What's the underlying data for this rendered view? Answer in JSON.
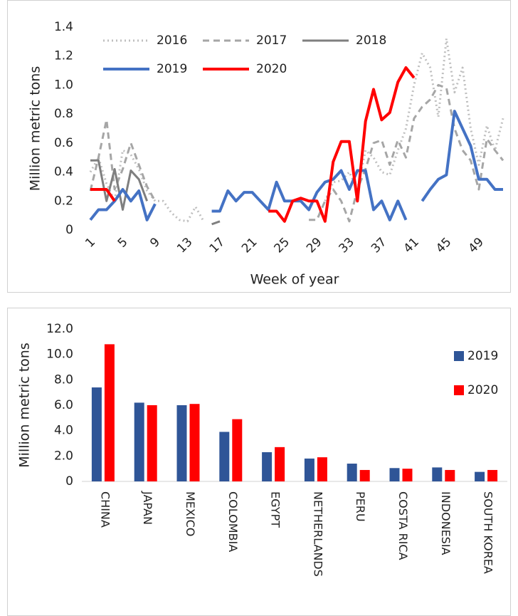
{
  "chart_data": [
    {
      "type": "line",
      "y_label": "Million metric tons",
      "x_label": "Week of year",
      "x": [
        1,
        2,
        3,
        4,
        5,
        6,
        7,
        8,
        9,
        10,
        11,
        12,
        13,
        14,
        15,
        16,
        17,
        18,
        19,
        20,
        21,
        22,
        23,
        24,
        25,
        26,
        27,
        28,
        29,
        30,
        31,
        32,
        33,
        34,
        35,
        36,
        37,
        38,
        39,
        40,
        41,
        42,
        43,
        44,
        45,
        46,
        47,
        48,
        49,
        50,
        51,
        52
      ],
      "xlim": [
        1,
        52
      ],
      "xticks": [
        1,
        5,
        9,
        13,
        17,
        21,
        25,
        29,
        33,
        37,
        41,
        45,
        49
      ],
      "ylim": [
        0,
        1.4
      ],
      "yticks": [
        0,
        0.2,
        0.4,
        0.6,
        0.8,
        {
          "value": 1,
          "label": "1.0"
        },
        1.2,
        1.4
      ],
      "series": [
        {
          "name": "2016",
          "color": "#bfbfbf",
          "style": "dotted",
          "values": [
            0.4,
            0.5,
            0.32,
            0.2,
            0.55,
            0.52,
            0.42,
            0.27,
            0.2,
            0.2,
            0.12,
            0.07,
            0.06,
            0.16,
            0.06,
            null,
            null,
            null,
            null,
            null,
            null,
            null,
            null,
            null,
            null,
            null,
            null,
            null,
            null,
            0.2,
            0.33,
            0.34,
            0.4,
            0.28,
            0.55,
            0.5,
            0.4,
            0.38,
            0.55,
            0.7,
            1.0,
            1.22,
            1.12,
            0.78,
            1.32,
            0.95,
            1.12,
            0.7,
            0.45,
            0.72,
            0.55,
            0.77
          ]
        },
        {
          "name": "2017",
          "color": "#a6a6a6",
          "style": "dashed",
          "values": [
            0.27,
            0.5,
            0.76,
            0.28,
            0.42,
            0.6,
            0.45,
            0.3,
            0.2,
            null,
            null,
            null,
            null,
            null,
            null,
            null,
            null,
            null,
            null,
            null,
            null,
            null,
            null,
            null,
            null,
            null,
            null,
            0.07,
            0.07,
            0.2,
            0.28,
            0.2,
            0.06,
            0.28,
            0.42,
            0.6,
            0.62,
            0.45,
            0.62,
            0.5,
            0.77,
            0.85,
            0.9,
            1.0,
            0.98,
            0.7,
            0.55,
            0.48,
            0.28,
            0.63,
            0.55,
            0.48
          ]
        },
        {
          "name": "2018",
          "color": "#7f7f7f",
          "style": "solid",
          "values": [
            0.48,
            0.48,
            0.2,
            0.42,
            0.14,
            0.41,
            0.35,
            0.2,
            null,
            null,
            null,
            null,
            null,
            null,
            null,
            0.04,
            0.06,
            null,
            null,
            null,
            null,
            null,
            null,
            null,
            null,
            null,
            null,
            null,
            null,
            null,
            null,
            null,
            null,
            null,
            null,
            null,
            null,
            null,
            null,
            null,
            null,
            null,
            null,
            null,
            null,
            null,
            null,
            null,
            null,
            null,
            null,
            null
          ]
        },
        {
          "name": "2019",
          "color": "#4472c4",
          "style": "solid",
          "values": [
            0.07,
            0.14,
            0.14,
            0.2,
            0.28,
            0.2,
            0.27,
            0.07,
            0.18,
            null,
            null,
            null,
            null,
            null,
            null,
            0.13,
            0.13,
            0.27,
            0.2,
            0.26,
            0.26,
            0.2,
            0.14,
            0.33,
            0.2,
            0.2,
            0.2,
            0.14,
            0.26,
            0.33,
            0.35,
            0.41,
            0.28,
            0.41,
            0.41,
            0.14,
            0.2,
            0.07,
            0.2,
            0.07,
            null,
            0.2,
            0.28,
            0.35,
            0.38,
            0.82,
            0.7,
            0.58,
            0.35,
            0.35,
            0.28,
            0.28
          ]
        },
        {
          "name": "2020",
          "color": "#ff0000",
          "style": "solid",
          "values": [
            0.28,
            0.28,
            0.28,
            0.2,
            null,
            null,
            null,
            null,
            null,
            null,
            null,
            null,
            null,
            null,
            null,
            null,
            null,
            null,
            null,
            null,
            null,
            null,
            0.13,
            0.13,
            0.06,
            0.2,
            0.22,
            0.2,
            0.2,
            0.06,
            0.47,
            0.61,
            0.61,
            0.2,
            0.75,
            0.97,
            0.76,
            0.81,
            1.02,
            1.12,
            1.05,
            null,
            null,
            null,
            null,
            null,
            null,
            null,
            null,
            null,
            null,
            null
          ]
        }
      ]
    },
    {
      "type": "bar",
      "y_label": "Million metric tons",
      "categories": [
        "CHINA",
        "JAPAN",
        "MEXICO",
        "COLOMBIA",
        "EGYPT",
        "NETHERLANDS",
        "PERU",
        "COSTA RICA",
        "INDONESIA",
        "SOUTH KOREA"
      ],
      "ylim": [
        0,
        12
      ],
      "yticks": [
        0,
        {
          "value": 2,
          "label": "2.0"
        },
        {
          "value": 4,
          "label": "4.0"
        },
        {
          "value": 6,
          "label": "6.0"
        },
        {
          "value": 8,
          "label": "8.0"
        },
        {
          "value": 10,
          "label": "10.0"
        },
        {
          "value": 12,
          "label": "12.0"
        }
      ],
      "legend": "right",
      "series": [
        {
          "name": "2019",
          "color": "#2f5597",
          "values": [
            7.4,
            6.2,
            6.0,
            3.9,
            2.3,
            1.8,
            1.4,
            1.05,
            1.1,
            0.75
          ]
        },
        {
          "name": "2020",
          "color": "#ff0000",
          "values": [
            10.8,
            6.0,
            6.1,
            4.9,
            2.7,
            1.9,
            0.9,
            1.0,
            0.9,
            0.9
          ]
        }
      ]
    }
  ]
}
